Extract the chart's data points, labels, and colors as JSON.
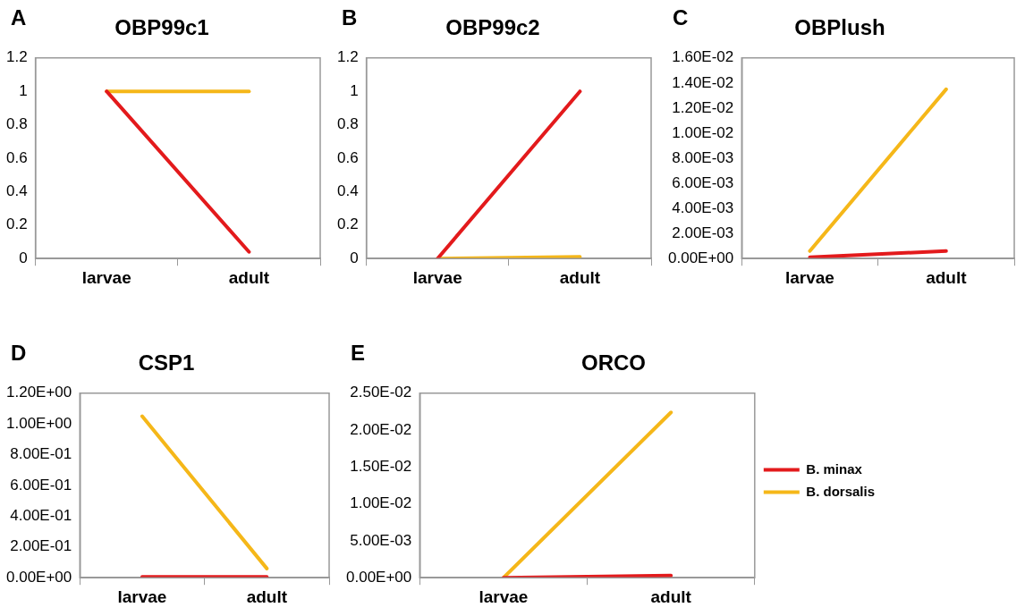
{
  "chart_data": [
    {
      "type": "line",
      "title": "OBP99c1",
      "annotations": [
        "A"
      ],
      "categories": [
        "larvae",
        "adult"
      ],
      "ylim": [
        0,
        1.2
      ],
      "yticks": [
        0,
        0.2,
        0.4,
        0.6,
        0.8,
        1,
        1.2
      ],
      "series": [
        {
          "color": "#e31a1c",
          "values": [
            1,
            0.04
          ]
        },
        {
          "color": "#f5b719",
          "values": [
            1,
            1
          ]
        }
      ]
    },
    {
      "type": "line",
      "title": "OBP99c2",
      "annotations": [
        "B"
      ],
      "categories": [
        "larvae",
        "adult"
      ],
      "ylim": [
        0,
        1.2
      ],
      "yticks": [
        0,
        0.2,
        0.4,
        0.6,
        0.8,
        1,
        1.2
      ],
      "series": [
        {
          "color": "#e31a1c",
          "values": [
            0,
            1
          ]
        },
        {
          "color": "#f5b719",
          "values": [
            0,
            0.01
          ]
        }
      ]
    },
    {
      "type": "line",
      "title": "OBPlush",
      "annotations": [
        "C"
      ],
      "categories": [
        "larvae",
        "adult"
      ],
      "ylim": [
        0,
        0.016
      ],
      "yticks": [
        {
          "value": 0,
          "label": "0.00E+00"
        },
        {
          "value": 0.002,
          "label": "2.00E-03"
        },
        {
          "value": 0.004,
          "label": "4.00E-03"
        },
        {
          "value": 0.006,
          "label": "6.00E-03"
        },
        {
          "value": 0.008,
          "label": "8.00E-03"
        },
        {
          "value": 0.01,
          "label": "1.00E-02"
        },
        {
          "value": 0.012,
          "label": "1.20E-02"
        },
        {
          "value": 0.014,
          "label": "1.40E-02"
        },
        {
          "value": 0.016,
          "label": "1.60E-02"
        }
      ],
      "series": [
        {
          "color": "#e31a1c",
          "values": [
            0.0001,
            0.0006
          ]
        },
        {
          "color": "#f5b719",
          "values": [
            0.0006,
            0.0135
          ]
        }
      ]
    },
    {
      "type": "line",
      "title": "CSP1",
      "annotations": [
        "D"
      ],
      "categories": [
        "larvae",
        "adult"
      ],
      "ylim": [
        0,
        1.2
      ],
      "yticks": [
        {
          "value": 0,
          "label": "0.00E+00"
        },
        {
          "value": 0.2,
          "label": "2.00E-01"
        },
        {
          "value": 0.4,
          "label": "4.00E-01"
        },
        {
          "value": 0.6,
          "label": "6.00E-01"
        },
        {
          "value": 0.8,
          "label": "8.00E-01"
        },
        {
          "value": 1,
          "label": "1.00E+00"
        },
        {
          "value": 1.2,
          "label": "1.20E+00"
        }
      ],
      "series": [
        {
          "color": "#e31a1c",
          "values": [
            0.005,
            0.005
          ]
        },
        {
          "color": "#f5b719",
          "values": [
            1.05,
            0.06
          ]
        }
      ]
    },
    {
      "type": "line",
      "title": "ORCO",
      "annotations": [
        "E"
      ],
      "categories": [
        "larvae",
        "adult"
      ],
      "ylim": [
        0,
        0.025
      ],
      "yticks": [
        {
          "value": 0,
          "label": "0.00E+00"
        },
        {
          "value": 0.005,
          "label": "5.00E-03"
        },
        {
          "value": 0.01,
          "label": "1.00E-02"
        },
        {
          "value": 0.015,
          "label": "1.50E-02"
        },
        {
          "value": 0.02,
          "label": "2.00E-02"
        },
        {
          "value": 0.025,
          "label": "2.50E-02"
        }
      ],
      "legend": "right",
      "series": [
        {
          "name": "B. minax",
          "color": "#e31a1c",
          "values": [
            0,
            0.0003
          ]
        },
        {
          "name": "B. dorsalis",
          "color": "#f5b719",
          "values": [
            0,
            0.0224
          ]
        }
      ]
    }
  ]
}
